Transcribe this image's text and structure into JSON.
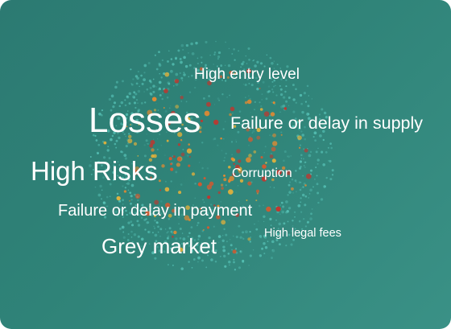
{
  "cloud": {
    "words": [
      {
        "id": "high-entry-level",
        "text": "High entry level"
      },
      {
        "id": "losses",
        "text": "Losses"
      },
      {
        "id": "failure-supply",
        "text": "Failure or delay in supply"
      },
      {
        "id": "high-risks",
        "text": "High Risks"
      },
      {
        "id": "corruption",
        "text": "Corruption"
      },
      {
        "id": "failure-payment",
        "text": "Failure or delay in payment"
      },
      {
        "id": "high-legal-fees",
        "text": "High legal fees"
      },
      {
        "id": "grey-market",
        "text": "Grey market"
      }
    ]
  },
  "colors": {
    "background_start": "#2c7a72",
    "background_end": "#3a9186",
    "ring_dots": "#5fd0c4",
    "warm_dots": [
      "#e0562a",
      "#f08a2c",
      "#c8322a",
      "#e6b23a"
    ]
  }
}
